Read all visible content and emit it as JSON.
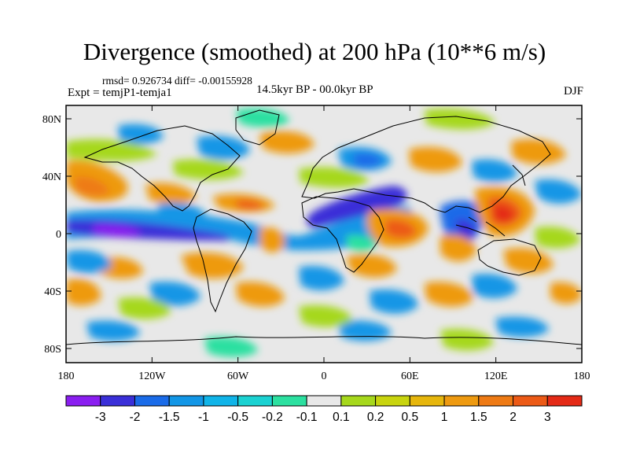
{
  "title": "Divergence (smoothed) at 200 hPa (10**6 m/s)",
  "stats": "rmsd= 0.926734 diff= -0.00155928",
  "experiment": "Expt = temjP1-temja1",
  "period": "14.5kyr BP - 00.0kyr BP",
  "season": "DJF",
  "map": {
    "projection": "cylindrical-equidistant",
    "background_color": "#e8e8e8",
    "x_ticks": [
      "180",
      "120W",
      "60W",
      "0",
      "60E",
      "120E",
      "180"
    ],
    "y_ticks": [
      "80N",
      "40N",
      "0",
      "40S",
      "80S"
    ]
  },
  "colorbar": {
    "colors": [
      "#8a1ef0",
      "#3a2fd8",
      "#1a6be8",
      "#1296e6",
      "#10b4e8",
      "#1bd2d2",
      "#2ce0a0",
      "#e8e8e8",
      "#a6d81c",
      "#c8d40e",
      "#e6b60c",
      "#ee9a10",
      "#ee7a14",
      "#ec5a16",
      "#e42a16"
    ],
    "labels": [
      "-3",
      "-2",
      "-1.5",
      "-1",
      "-0.5",
      "-0.2",
      "-0.1",
      "0.1",
      "0.2",
      "0.5",
      "1",
      "1.5",
      "2",
      "3"
    ]
  }
}
